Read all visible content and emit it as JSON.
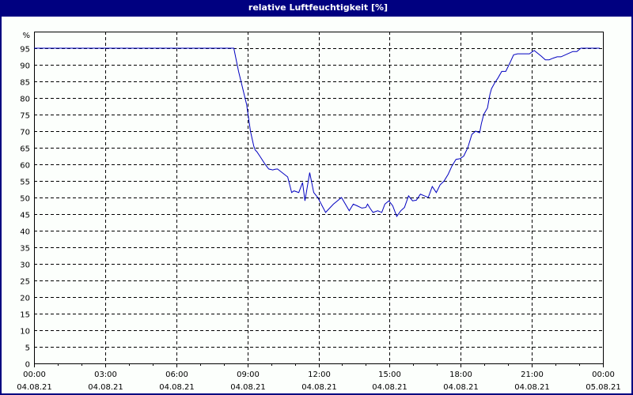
{
  "window": {
    "title": "relative Luftfeuchtigkeit [%]",
    "title_bg": "#000080",
    "title_fg": "#ffffff",
    "border_color": "#000080"
  },
  "chart_data": {
    "type": "line",
    "title": "relative Luftfeuchtigkeit [%]",
    "xlabel": "",
    "ylabel": "%",
    "ylim": [
      0,
      100
    ],
    "xlim_hours": [
      0,
      24
    ],
    "grid": true,
    "grid_style": "dashed",
    "legend": null,
    "y_ticks": [
      0,
      5,
      10,
      15,
      20,
      25,
      30,
      35,
      40,
      45,
      50,
      55,
      60,
      65,
      70,
      75,
      80,
      85,
      90,
      95
    ],
    "y_unit_label": "%",
    "x_ticks": [
      {
        "time": "00:00",
        "date": "04.08.21",
        "hour": 0
      },
      {
        "time": "03:00",
        "date": "04.08.21",
        "hour": 3
      },
      {
        "time": "06:00",
        "date": "04.08.21",
        "hour": 6
      },
      {
        "time": "09:00",
        "date": "04.08.21",
        "hour": 9
      },
      {
        "time": "12:00",
        "date": "04.08.21",
        "hour": 12
      },
      {
        "time": "15:00",
        "date": "04.08.21",
        "hour": 15
      },
      {
        "time": "18:00",
        "date": "04.08.21",
        "hour": 18
      },
      {
        "time": "21:00",
        "date": "04.08.21",
        "hour": 21
      },
      {
        "time": "00:00",
        "date": "05.08.21",
        "hour": 24
      }
    ],
    "series": [
      {
        "name": "relative Luftfeuchtigkeit",
        "color": "#0000c0",
        "x_hours": [
          0,
          8.43,
          8.63,
          8.97,
          9.13,
          9.27,
          9.33,
          9.4,
          9.57,
          9.73,
          9.9,
          10.07,
          10.17,
          10.27,
          10.7,
          10.87,
          10.97,
          11.17,
          11.33,
          11.43,
          11.63,
          11.8,
          11.97,
          12.3,
          12.63,
          12.97,
          13.3,
          13.47,
          13.63,
          13.83,
          14.0,
          14.07,
          14.17,
          14.3,
          14.5,
          14.67,
          14.8,
          14.97,
          15.13,
          15.3,
          15.47,
          15.63,
          15.8,
          15.97,
          16.13,
          16.3,
          16.47,
          16.63,
          16.8,
          16.97,
          17.13,
          17.3,
          17.47,
          17.63,
          17.8,
          17.97,
          18.13,
          18.3,
          18.47,
          18.63,
          18.8,
          18.87,
          18.97,
          19.13,
          19.23,
          19.3,
          19.43,
          19.57,
          19.73,
          19.9,
          20.07,
          20.23,
          20.4,
          20.57,
          20.9,
          21.1,
          21.4,
          21.57,
          21.73,
          21.9,
          22.07,
          22.23,
          22.57,
          22.73,
          22.9,
          23.07,
          23.3,
          23.87
        ],
        "values": [
          95,
          95,
          88,
          78,
          70,
          65.5,
          64.3,
          63.8,
          62,
          60.2,
          58.6,
          58.3,
          58.5,
          58.6,
          56.2,
          51.5,
          52,
          51.5,
          54.5,
          49,
          57.5,
          51.5,
          50,
          45.5,
          48,
          50,
          46,
          48,
          47.5,
          46.8,
          47,
          48,
          46.8,
          45.5,
          46,
          45.5,
          48,
          49,
          47.5,
          44.3,
          46,
          47,
          50.5,
          49,
          49.2,
          51,
          50.5,
          50,
          53.3,
          51.5,
          53.8,
          55,
          57,
          59.5,
          61.5,
          61.7,
          62.5,
          65,
          69,
          70,
          69.5,
          72.2,
          75,
          77,
          81,
          82.8,
          84.5,
          86,
          88,
          88,
          90.5,
          93,
          93.3,
          93.3,
          93.3,
          94.3,
          92.6,
          91.5,
          91.5,
          92,
          92.4,
          92.4,
          93.5,
          94,
          94,
          95,
          95,
          95
        ]
      }
    ]
  }
}
